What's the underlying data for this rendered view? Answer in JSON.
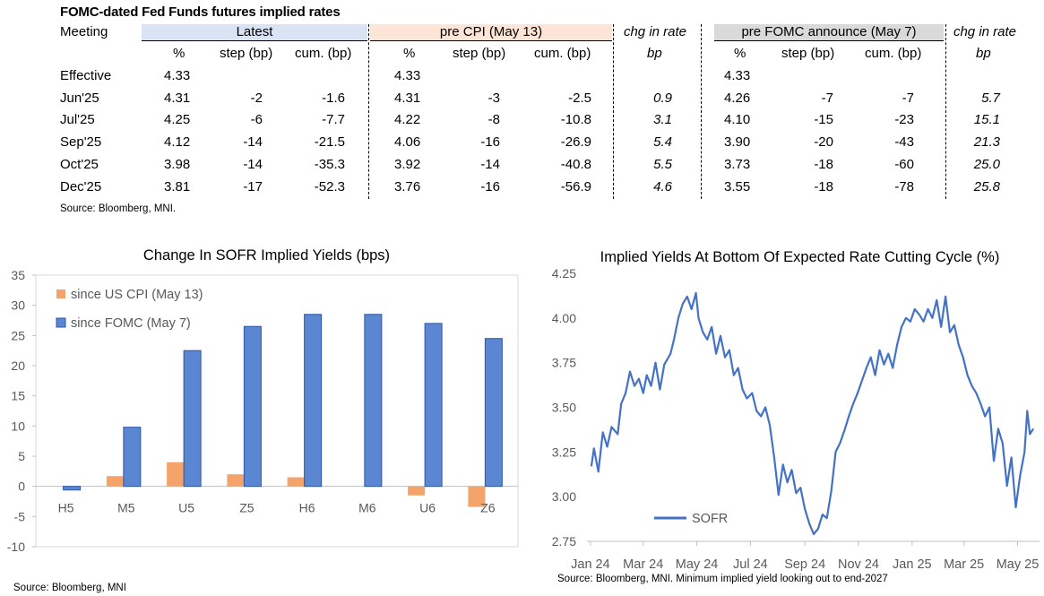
{
  "table": {
    "title": "FOMC-dated Fed Funds futures implied rates",
    "meeting_header": "Meeting",
    "groups": {
      "latest": "Latest",
      "pre_cpi": "pre CPI (May 13)",
      "chg1": "chg in rate",
      "pre_fomc": "pre FOMC announce (May 7)",
      "chg2": "chg in rate"
    },
    "subheaders": {
      "pct": "%",
      "step": "step (bp)",
      "cum": "cum. (bp)",
      "bp": "bp"
    },
    "rows": [
      {
        "meeting": "Effective",
        "l_pct": "4.33",
        "l_step": "",
        "l_cum": "",
        "c_pct": "4.33",
        "c_step": "",
        "c_cum": "",
        "chg1": "",
        "f_pct": "4.33",
        "f_step": "",
        "f_cum": "",
        "chg2": ""
      },
      {
        "meeting": "Jun'25",
        "l_pct": "4.31",
        "l_step": "-2",
        "l_cum": "-1.6",
        "c_pct": "4.31",
        "c_step": "-3",
        "c_cum": "-2.5",
        "chg1": "0.9",
        "f_pct": "4.26",
        "f_step": "-7",
        "f_cum": "-7",
        "chg2": "5.7"
      },
      {
        "meeting": "Jul'25",
        "l_pct": "4.25",
        "l_step": "-6",
        "l_cum": "-7.7",
        "c_pct": "4.22",
        "c_step": "-8",
        "c_cum": "-10.8",
        "chg1": "3.1",
        "f_pct": "4.10",
        "f_step": "-15",
        "f_cum": "-23",
        "chg2": "15.1"
      },
      {
        "meeting": "Sep'25",
        "l_pct": "4.12",
        "l_step": "-14",
        "l_cum": "-21.5",
        "c_pct": "4.06",
        "c_step": "-16",
        "c_cum": "-26.9",
        "chg1": "5.4",
        "f_pct": "3.90",
        "f_step": "-20",
        "f_cum": "-43",
        "chg2": "21.3"
      },
      {
        "meeting": "Oct'25",
        "l_pct": "3.98",
        "l_step": "-14",
        "l_cum": "-35.3",
        "c_pct": "3.92",
        "c_step": "-14",
        "c_cum": "-40.8",
        "chg1": "5.5",
        "f_pct": "3.73",
        "f_step": "-18",
        "f_cum": "-60",
        "chg2": "25.0"
      },
      {
        "meeting": "Dec'25",
        "l_pct": "3.81",
        "l_step": "-17",
        "l_cum": "-52.3",
        "c_pct": "3.76",
        "c_step": "-16",
        "c_cum": "-56.9",
        "chg1": "4.6",
        "f_pct": "3.55",
        "f_step": "-18",
        "f_cum": "-78",
        "chg2": "25.8"
      }
    ],
    "source": "Source: Bloomberg, MNI."
  },
  "colors": {
    "bar_cpi": "#f4a46a",
    "bar_fomc": "#5b86d1",
    "bar_fomc_edge": "#2f55a4",
    "line": "#4472c4",
    "grid": "#d9d9d9",
    "header_latest": "#dae3f3",
    "header_precpi": "#fce4d6",
    "header_prefomc": "#d9d9d9"
  },
  "chart_data": [
    {
      "type": "bar",
      "title": "Change In SOFR Implied Yields (bps)",
      "categories": [
        "H5",
        "M5",
        "U5",
        "Z5",
        "H6",
        "M6",
        "U6",
        "Z6"
      ],
      "series": [
        {
          "name": "since US CPI (May 13)",
          "values": [
            0,
            1.7,
            4.0,
            2.0,
            1.5,
            0,
            -1.5,
            -3.4
          ]
        },
        {
          "name": "since FOMC (May 7)",
          "values": [
            -0.6,
            9.8,
            22.5,
            26.5,
            28.5,
            28.5,
            27.0,
            24.5
          ]
        }
      ],
      "ylim": [
        -10,
        35
      ],
      "yticks": [
        "-10",
        "-5",
        "0",
        "5",
        "10",
        "15",
        "20",
        "25",
        "30",
        "35"
      ],
      "legend_position": "top-left",
      "source": "Source: Bloomberg, MNI"
    },
    {
      "type": "line",
      "title": "Implied Yields At Bottom Of Expected Rate Cutting Cycle (%)",
      "series": [
        {
          "name": "SOFR",
          "points": [
            [
              "2024-01-02",
              3.17
            ],
            [
              "2024-01-05",
              3.27
            ],
            [
              "2024-01-10",
              3.14
            ],
            [
              "2024-01-15",
              3.36
            ],
            [
              "2024-01-20",
              3.28
            ],
            [
              "2024-01-25",
              3.39
            ],
            [
              "2024-02-01",
              3.35
            ],
            [
              "2024-02-05",
              3.52
            ],
            [
              "2024-02-10",
              3.58
            ],
            [
              "2024-02-15",
              3.7
            ],
            [
              "2024-02-20",
              3.62
            ],
            [
              "2024-02-25",
              3.66
            ],
            [
              "2024-03-01",
              3.58
            ],
            [
              "2024-03-05",
              3.68
            ],
            [
              "2024-03-10",
              3.62
            ],
            [
              "2024-03-15",
              3.75
            ],
            [
              "2024-03-20",
              3.6
            ],
            [
              "2024-03-25",
              3.74
            ],
            [
              "2024-04-01",
              3.8
            ],
            [
              "2024-04-05",
              3.88
            ],
            [
              "2024-04-10",
              4.0
            ],
            [
              "2024-04-15",
              4.08
            ],
            [
              "2024-04-20",
              4.12
            ],
            [
              "2024-04-25",
              4.05
            ],
            [
              "2024-04-30",
              4.14
            ],
            [
              "2024-05-03",
              4.0
            ],
            [
              "2024-05-08",
              3.92
            ],
            [
              "2024-05-13",
              3.88
            ],
            [
              "2024-05-18",
              3.95
            ],
            [
              "2024-05-23",
              3.8
            ],
            [
              "2024-05-28",
              3.9
            ],
            [
              "2024-06-02",
              3.78
            ],
            [
              "2024-06-07",
              3.82
            ],
            [
              "2024-06-12",
              3.68
            ],
            [
              "2024-06-17",
              3.72
            ],
            [
              "2024-06-22",
              3.6
            ],
            [
              "2024-06-27",
              3.55
            ],
            [
              "2024-07-03",
              3.58
            ],
            [
              "2024-07-08",
              3.48
            ],
            [
              "2024-07-13",
              3.45
            ],
            [
              "2024-07-18",
              3.5
            ],
            [
              "2024-07-23",
              3.4
            ],
            [
              "2024-07-28",
              3.22
            ],
            [
              "2024-08-02",
              3.01
            ],
            [
              "2024-08-07",
              3.18
            ],
            [
              "2024-08-12",
              3.08
            ],
            [
              "2024-08-17",
              3.15
            ],
            [
              "2024-08-22",
              3.02
            ],
            [
              "2024-08-27",
              3.05
            ],
            [
              "2024-09-01",
              2.93
            ],
            [
              "2024-09-06",
              2.85
            ],
            [
              "2024-09-11",
              2.79
            ],
            [
              "2024-09-16",
              2.82
            ],
            [
              "2024-09-21",
              2.9
            ],
            [
              "2024-09-26",
              2.88
            ],
            [
              "2024-10-01",
              3.03
            ],
            [
              "2024-10-06",
              3.25
            ],
            [
              "2024-10-11",
              3.3
            ],
            [
              "2024-10-16",
              3.37
            ],
            [
              "2024-10-21",
              3.45
            ],
            [
              "2024-10-26",
              3.52
            ],
            [
              "2024-10-31",
              3.58
            ],
            [
              "2024-11-05",
              3.65
            ],
            [
              "2024-11-10",
              3.72
            ],
            [
              "2024-11-15",
              3.78
            ],
            [
              "2024-11-20",
              3.68
            ],
            [
              "2024-11-25",
              3.82
            ],
            [
              "2024-11-30",
              3.74
            ],
            [
              "2024-12-05",
              3.8
            ],
            [
              "2024-12-10",
              3.72
            ],
            [
              "2024-12-15",
              3.85
            ],
            [
              "2024-12-20",
              3.95
            ],
            [
              "2024-12-25",
              4.0
            ],
            [
              "2024-12-30",
              3.98
            ],
            [
              "2025-01-04",
              4.05
            ],
            [
              "2025-01-09",
              4.02
            ],
            [
              "2025-01-14",
              3.98
            ],
            [
              "2025-01-19",
              4.05
            ],
            [
              "2025-01-24",
              4.0
            ],
            [
              "2025-01-29",
              4.1
            ],
            [
              "2025-02-03",
              3.95
            ],
            [
              "2025-02-08",
              4.12
            ],
            [
              "2025-02-13",
              3.92
            ],
            [
              "2025-02-18",
              3.96
            ],
            [
              "2025-02-23",
              3.85
            ],
            [
              "2025-02-28",
              3.78
            ],
            [
              "2025-03-05",
              3.68
            ],
            [
              "2025-03-10",
              3.62
            ],
            [
              "2025-03-15",
              3.58
            ],
            [
              "2025-03-20",
              3.52
            ],
            [
              "2025-03-25",
              3.45
            ],
            [
              "2025-03-30",
              3.5
            ],
            [
              "2025-04-04",
              3.2
            ],
            [
              "2025-04-09",
              3.38
            ],
            [
              "2025-04-14",
              3.3
            ],
            [
              "2025-04-19",
              3.06
            ],
            [
              "2025-04-24",
              3.22
            ],
            [
              "2025-04-29",
              2.94
            ],
            [
              "2025-05-04",
              3.12
            ],
            [
              "2025-05-09",
              3.25
            ],
            [
              "2025-05-12",
              3.48
            ],
            [
              "2025-05-15",
              3.35
            ],
            [
              "2025-05-19",
              3.38
            ]
          ]
        }
      ],
      "x_tick_labels": [
        "Jan 24",
        "Mar 24",
        "May 24",
        "Jul 24",
        "Sep 24",
        "Nov 24",
        "Jan 25",
        "Mar 25",
        "May 25"
      ],
      "x_tick_dates": [
        "2024-01-01",
        "2024-03-01",
        "2024-05-01",
        "2024-07-01",
        "2024-09-01",
        "2024-11-01",
        "2025-01-01",
        "2025-03-01",
        "2025-05-01"
      ],
      "xlim": [
        "2023-12-28",
        "2025-05-26"
      ],
      "ylim": [
        2.75,
        4.25
      ],
      "yticks": [
        "2.75",
        "3.00",
        "3.25",
        "3.50",
        "3.75",
        "4.00",
        "4.25"
      ],
      "legend_position": "bottom-left",
      "source": "Source: Bloomberg, MNI. Minimum implied yield looking out to end-2027"
    }
  ]
}
